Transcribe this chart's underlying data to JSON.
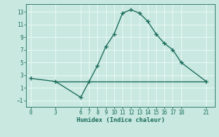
{
  "x": [
    0,
    3,
    6,
    7,
    8,
    9,
    10,
    11,
    12,
    13,
    14,
    15,
    16,
    17,
    18,
    21
  ],
  "y": [
    2.5,
    2.0,
    -0.5,
    2.0,
    4.5,
    7.5,
    9.5,
    12.8,
    13.3,
    12.8,
    11.5,
    9.5,
    8.0,
    7.0,
    5.0,
    2.0
  ],
  "hline_y": 2.0,
  "hline_x_start": 3,
  "hline_x_end": 21,
  "line_color": "#1a6b5a",
  "bg_color": "#c8e8e0",
  "grid_color": "#e8f8f4",
  "xlabel": "Humidex (Indice chaleur)",
  "xticks": [
    0,
    3,
    6,
    7,
    8,
    9,
    10,
    11,
    12,
    13,
    14,
    15,
    16,
    17,
    18,
    21
  ],
  "yticks": [
    -1,
    1,
    3,
    5,
    7,
    9,
    11,
    13
  ],
  "xlim": [
    -0.5,
    22
  ],
  "ylim": [
    -2.0,
    14.2
  ]
}
